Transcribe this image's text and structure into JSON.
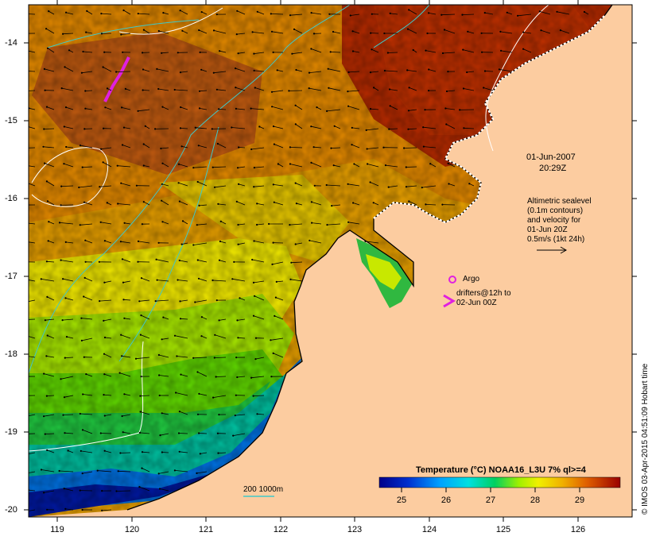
{
  "map": {
    "date": "01-Jun-2007",
    "time": "20:29Z",
    "altimetry_note": [
      "Altimetric sealevel",
      "(0.1m contours)",
      "and velocity for",
      "01-Jun 20Z",
      "0.5m/s (1kt 24h)"
    ],
    "argo_label": "Argo",
    "drifter_note": [
      "drifters@12h to",
      "02-Jun 00Z"
    ],
    "isobath_label": "200  1000m",
    "credit": "© IMOS 03-Apr-2015 04:51:09 Hobart time",
    "lat_ticks": [
      "-14",
      "-15",
      "-16",
      "-17",
      "-18",
      "-19",
      "-20"
    ],
    "lon_ticks": [
      "119",
      "120",
      "121",
      "122",
      "123",
      "124",
      "125",
      "126"
    ],
    "colorbar": {
      "title": "Temperature (°C) NOAA16_L3U 7% ql>=4",
      "ticks": [
        "25",
        "26",
        "27",
        "28",
        "29"
      ],
      "range": [
        24.2,
        29.9
      ]
    },
    "colors": {
      "land": "#fccca0",
      "argo": "#e020e0",
      "isobath": "#40c8c8",
      "contour": "#ffffff"
    }
  }
}
